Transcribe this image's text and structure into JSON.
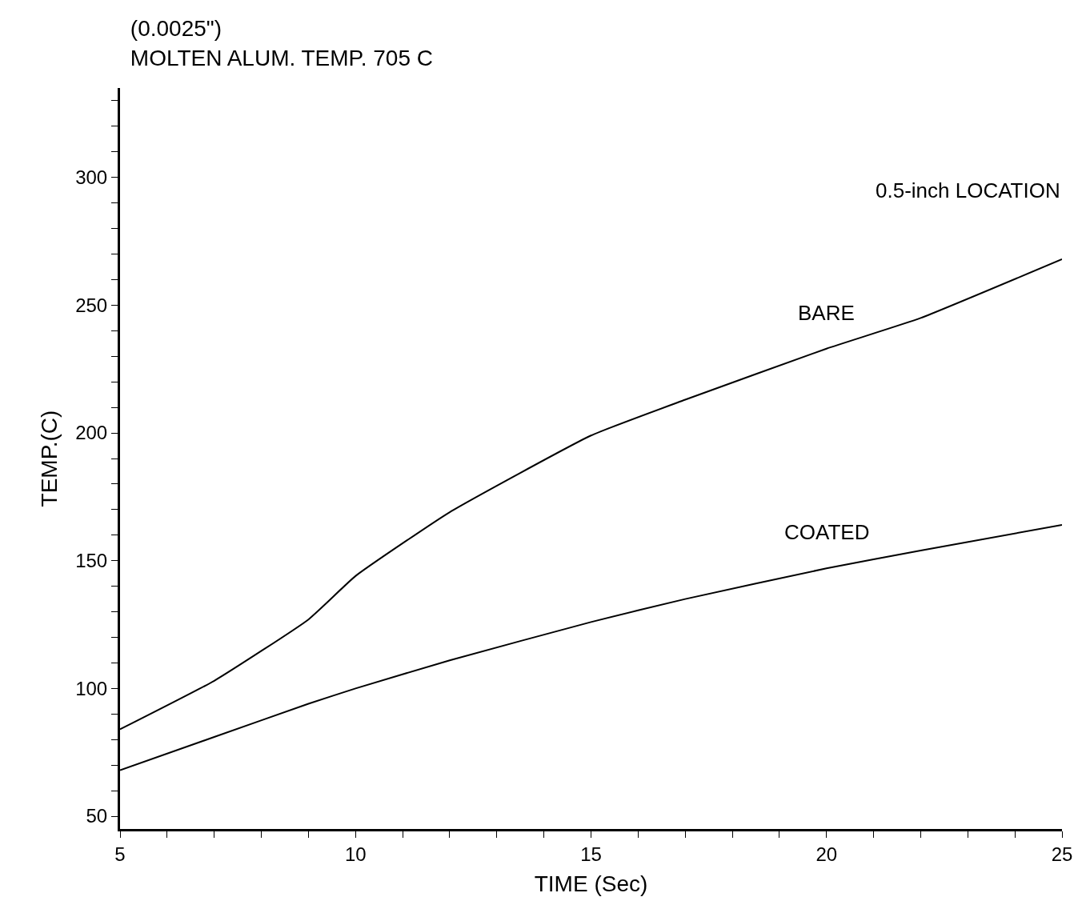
{
  "chart_data": {
    "type": "line",
    "title": "(0.0025\")\nMOLTEN ALUM. TEMP. 705 C",
    "xlabel": "TIME (Sec)",
    "ylabel": "TEMP.(C)",
    "x": [
      5,
      7,
      9,
      10,
      12,
      15,
      17,
      20,
      22,
      25
    ],
    "series": [
      {
        "name": "BARE",
        "color": "#000000",
        "values": [
          84,
          103,
          127,
          144,
          169,
          199,
          213,
          233,
          245,
          268
        ]
      },
      {
        "name": "COATED",
        "color": "#000000",
        "values": [
          68,
          81,
          94,
          100,
          111,
          126,
          135,
          147,
          154,
          164
        ]
      }
    ],
    "annotations": [
      "0.5-inch LOCATION"
    ],
    "xlim": [
      5,
      25
    ],
    "ylim": [
      45,
      335
    ],
    "xticks": [
      5,
      {
        "value": 6,
        "label": null
      },
      {
        "value": 7,
        "label": null
      },
      {
        "value": 8,
        "label": null
      },
      {
        "value": 9,
        "label": null
      },
      10,
      {
        "value": 11,
        "label": null
      },
      {
        "value": 12,
        "label": null
      },
      {
        "value": 13,
        "label": null
      },
      {
        "value": 14,
        "label": null
      },
      15,
      {
        "value": 16,
        "label": null
      },
      {
        "value": 17,
        "label": null
      },
      {
        "value": 18,
        "label": null
      },
      {
        "value": 19,
        "label": null
      },
      20,
      {
        "value": 21,
        "label": null
      },
      {
        "value": 22,
        "label": null
      },
      {
        "value": 23,
        "label": null
      },
      {
        "value": 24,
        "label": null
      },
      25
    ],
    "yticks": [
      50,
      {
        "value": 60,
        "label": null
      },
      {
        "value": 70,
        "label": null
      },
      {
        "value": 80,
        "label": null
      },
      {
        "value": 90,
        "label": null
      },
      100,
      {
        "value": 110,
        "label": null
      },
      {
        "value": 120,
        "label": null
      },
      {
        "value": 130,
        "label": null
      },
      {
        "value": 140,
        "label": null
      },
      150,
      {
        "value": 160,
        "label": null
      },
      {
        "value": 170,
        "label": null
      },
      {
        "value": 180,
        "label": null
      },
      {
        "value": 190,
        "label": null
      },
      200,
      {
        "value": 210,
        "label": null
      },
      {
        "value": 220,
        "label": null
      },
      {
        "value": 230,
        "label": null
      },
      {
        "value": 240,
        "label": null
      },
      250,
      {
        "value": 260,
        "label": null
      },
      {
        "value": 270,
        "label": null
      },
      {
        "value": 280,
        "label": null
      },
      {
        "value": 290,
        "label": null
      },
      300,
      {
        "value": 310,
        "label": null
      },
      {
        "value": 320,
        "label": null
      },
      {
        "value": 330,
        "label": null
      }
    ],
    "legend": false,
    "marker": "none",
    "line_style": "solid"
  }
}
